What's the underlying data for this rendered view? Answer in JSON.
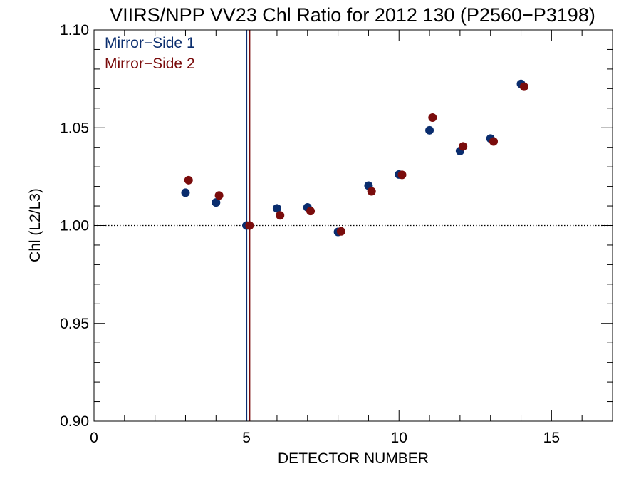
{
  "chart_data": {
    "type": "scatter",
    "title": "VIIRS/NPP VV23 Chl Ratio for 2012 130 (P2560−P3198)",
    "xlabel": "DETECTOR NUMBER",
    "ylabel": "Chl (L2/L3)",
    "xlim": [
      0,
      17
    ],
    "ylim": [
      0.9,
      1.1
    ],
    "x_ticks": [
      0,
      5,
      10,
      15
    ],
    "x_tick_labels": [
      "0",
      "5",
      "10",
      "15"
    ],
    "y_ticks": [
      0.9,
      0.95,
      1.0,
      1.05,
      1.1
    ],
    "y_tick_labels": [
      "0.90",
      "0.95",
      "1.00",
      "1.05",
      "1.10"
    ],
    "x_minor_step": 1,
    "y_minor_step": 0.01,
    "reference_line": {
      "y": 1.0,
      "style": "dotted"
    },
    "vertical_lines": [
      {
        "x": 5.0,
        "color": "#0a2d6e"
      },
      {
        "x": 5.1,
        "color": "#7a0c0c"
      }
    ],
    "legend": {
      "placement": "top-left"
    },
    "series": [
      {
        "name": "Mirror−Side 1",
        "color": "#0a2d6e",
        "x": [
          3,
          4,
          5,
          6,
          7,
          8,
          9,
          10,
          11,
          12,
          13,
          14
        ],
        "y": [
          1.0168,
          1.0118,
          1.0,
          1.0088,
          1.0093,
          0.9967,
          1.0204,
          1.0261,
          1.0487,
          1.0381,
          1.0445,
          1.0724
        ]
      },
      {
        "name": "Mirror−Side 2",
        "color": "#7a0c0c",
        "x": [
          3.1,
          4.1,
          5.1,
          6.1,
          7.1,
          8.1,
          9.1,
          10.1,
          11.1,
          12.1,
          13.1,
          14.1
        ],
        "y": [
          1.0232,
          1.0154,
          1.0,
          1.0052,
          1.0074,
          0.997,
          1.0175,
          1.0259,
          1.0552,
          1.0405,
          1.043,
          1.071
        ]
      }
    ]
  }
}
